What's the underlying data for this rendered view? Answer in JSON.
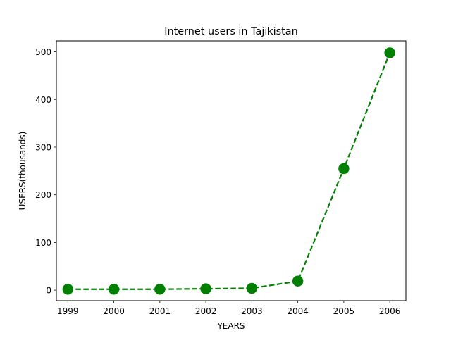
{
  "chart_data": {
    "type": "line",
    "title": "Internet users in Tajikistan",
    "xlabel": "YEARS",
    "ylabel": "USERS(thousands)",
    "x": [
      1999,
      2000,
      2001,
      2002,
      2003,
      2004,
      2005,
      2006
    ],
    "xtick_labels": [
      "1999",
      "2000",
      "2001",
      "2002",
      "2003",
      "2004",
      "2005",
      "2006"
    ],
    "yticks": [
      0,
      100,
      200,
      300,
      400,
      500
    ],
    "ytick_labels": [
      "0",
      "100",
      "200",
      "300",
      "400",
      "500"
    ],
    "xlim": [
      1998.75,
      2006.35
    ],
    "ylim": [
      -22,
      523
    ],
    "series": [
      {
        "values": [
          2,
          2,
          2,
          3,
          4,
          19,
          255,
          498
        ],
        "color": "#008000",
        "line_style": "dashed",
        "marker": "circle"
      }
    ],
    "grid": false,
    "legend": "none"
  }
}
